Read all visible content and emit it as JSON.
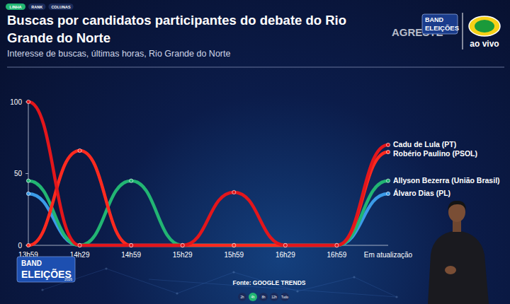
{
  "chart_data": {
    "type": "line",
    "title": "Buscas por candidatos participantes do debate do Rio Grande do Norte",
    "subtitle": "Interesse de buscas, últimas horas, Rio Grande do Norte",
    "source": "Fonte: GOOGLE TRENDS",
    "categories": [
      "13h59",
      "14h29",
      "14h59",
      "15h29",
      "15h59",
      "16h29",
      "16h59",
      "Em atualização"
    ],
    "series": [
      {
        "name": "Cadu de Lula (PT)",
        "color": "#e3161b",
        "values": [
          100,
          0,
          0,
          0,
          37,
          0,
          0,
          70
        ]
      },
      {
        "name": "Robério Paulino (PSOL)",
        "color": "#ff2a1f",
        "values": [
          0,
          66,
          0,
          0,
          0,
          0,
          0,
          65
        ]
      },
      {
        "name": "Allyson Bezerra (União Brasil)",
        "color": "#22b573",
        "values": [
          45,
          0,
          45,
          0,
          0,
          0,
          0,
          45
        ]
      },
      {
        "name": "Álvaro Dias (PL)",
        "color": "#3b9be8",
        "values": [
          36,
          0,
          0,
          0,
          0,
          0,
          0,
          36
        ]
      }
    ],
    "ylim": [
      0,
      100
    ],
    "yticks": [
      0,
      50,
      100
    ],
    "grid": false,
    "legend": "right",
    "marker": "circle",
    "line_style": "solid"
  },
  "page": {
    "tabs": [
      "LINHA",
      "RANK",
      "COLUNAS"
    ],
    "ranges": [
      "2h",
      "4h",
      "8h",
      "12h",
      "Tudo"
    ],
    "agreste": "AGRESTE",
    "band": "BAND",
    "eleicoes": "ELEIÇÕES",
    "live": "ao vivo",
    "year": "2026"
  }
}
